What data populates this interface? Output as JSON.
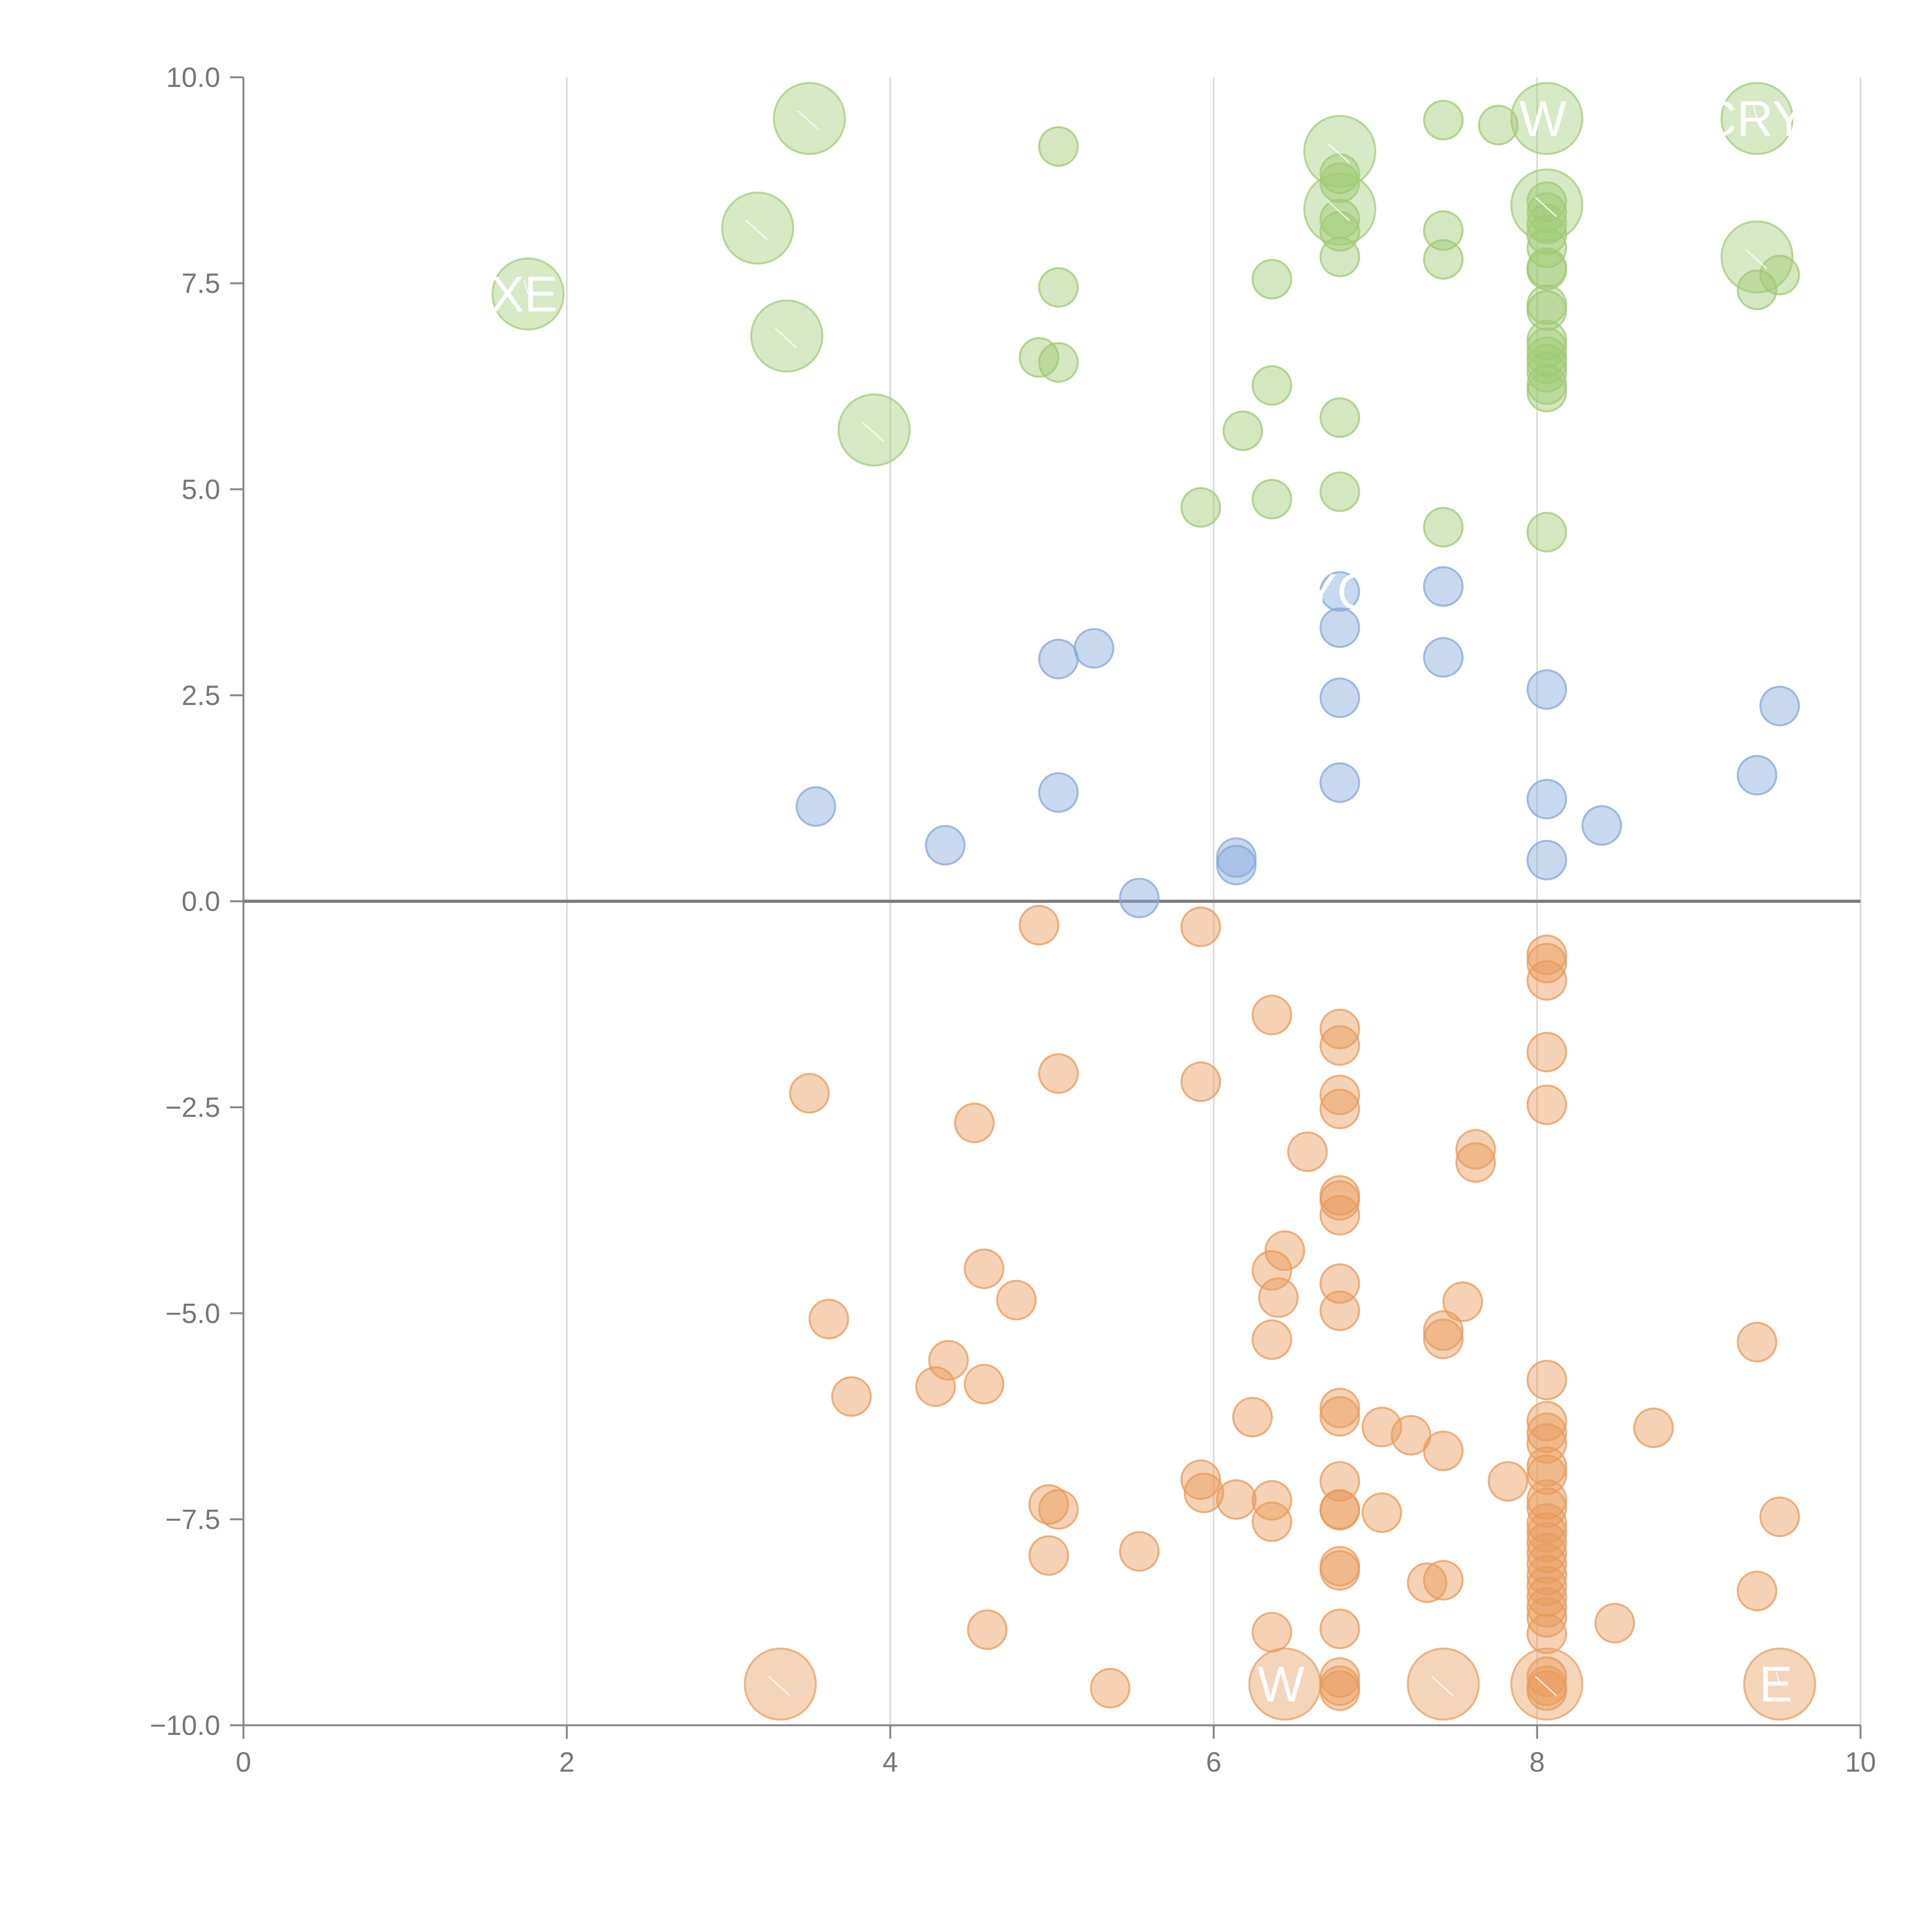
{
  "colors": {
    "positive_high": "#9fca74",
    "positive_low": "#86a8d9",
    "negative": "#e89b5b",
    "axis": "#888888",
    "grid": "#d9d9d9",
    "tick_text": "#777777",
    "label_text": "#ffffff"
  },
  "chart_data": {
    "type": "scatter",
    "title": "",
    "xlabel": "",
    "ylabel": "",
    "xlim": [
      0,
      10
    ],
    "ylim": [
      -10,
      10
    ],
    "x_ticks": [
      "0",
      "2",
      "4",
      "6",
      "8",
      "10"
    ],
    "y_ticks": [
      "−10.0",
      "−7.5",
      "−5.0",
      "−2.5",
      "0.0",
      "2.5",
      "5.0",
      "7.5",
      "10.0"
    ],
    "x_tick_values": [
      0,
      2,
      4,
      6,
      8,
      10
    ],
    "y_tick_values": [
      -10,
      -7.5,
      -5,
      -2.5,
      0,
      2.5,
      5,
      7.5,
      10
    ],
    "grid": "vertical",
    "series": [
      {
        "name": "green",
        "color": "#9fca74",
        "points": [
          {
            "x": 5.04,
            "y": 9.16
          },
          {
            "x": 7.42,
            "y": 9.48
          },
          {
            "x": 7.76,
            "y": 9.42
          },
          {
            "x": 6.78,
            "y": 8.83
          },
          {
            "x": 6.78,
            "y": 8.72
          },
          {
            "x": 6.78,
            "y": 8.28
          },
          {
            "x": 6.78,
            "y": 8.13
          },
          {
            "x": 6.78,
            "y": 7.82
          },
          {
            "x": 7.42,
            "y": 8.14
          },
          {
            "x": 7.42,
            "y": 7.79
          },
          {
            "x": 6.36,
            "y": 7.55
          },
          {
            "x": 5.04,
            "y": 7.45
          },
          {
            "x": 8.06,
            "y": 8.49
          },
          {
            "x": 8.06,
            "y": 8.36
          },
          {
            "x": 8.06,
            "y": 8.22
          },
          {
            "x": 8.06,
            "y": 8.09
          },
          {
            "x": 8.06,
            "y": 7.93
          },
          {
            "x": 8.06,
            "y": 7.69
          },
          {
            "x": 8.06,
            "y": 7.66
          },
          {
            "x": 8.06,
            "y": 7.24
          },
          {
            "x": 8.06,
            "y": 7.17
          },
          {
            "x": 8.06,
            "y": 6.81
          },
          {
            "x": 8.06,
            "y": 6.72
          },
          {
            "x": 8.06,
            "y": 6.61
          },
          {
            "x": 8.06,
            "y": 6.52
          },
          {
            "x": 8.06,
            "y": 6.42
          },
          {
            "x": 8.06,
            "y": 6.27
          },
          {
            "x": 8.06,
            "y": 6.18
          },
          {
            "x": 9.5,
            "y": 7.6
          },
          {
            "x": 9.36,
            "y": 7.42
          },
          {
            "x": 4.92,
            "y": 6.6
          },
          {
            "x": 5.04,
            "y": 6.54
          },
          {
            "x": 6.36,
            "y": 6.26
          },
          {
            "x": 6.18,
            "y": 5.71
          },
          {
            "x": 6.78,
            "y": 5.87
          },
          {
            "x": 5.92,
            "y": 4.78
          },
          {
            "x": 6.36,
            "y": 4.88
          },
          {
            "x": 6.78,
            "y": 4.97
          },
          {
            "x": 7.42,
            "y": 4.54
          },
          {
            "x": 8.06,
            "y": 4.48
          }
        ]
      },
      {
        "name": "blue",
        "color": "#86a8d9",
        "points": [
          {
            "x": 6.78,
            "y": 3.76
          },
          {
            "x": 7.42,
            "y": 3.82
          },
          {
            "x": 6.78,
            "y": 3.32
          },
          {
            "x": 5.26,
            "y": 3.07
          },
          {
            "x": 5.04,
            "y": 2.94
          },
          {
            "x": 7.42,
            "y": 2.96
          },
          {
            "x": 8.06,
            "y": 2.57
          },
          {
            "x": 6.78,
            "y": 2.47
          },
          {
            "x": 9.5,
            "y": 2.37
          },
          {
            "x": 6.78,
            "y": 1.44
          },
          {
            "x": 9.36,
            "y": 1.53
          },
          {
            "x": 8.06,
            "y": 1.24
          },
          {
            "x": 5.04,
            "y": 1.32
          },
          {
            "x": 3.54,
            "y": 1.15
          },
          {
            "x": 8.4,
            "y": 0.92
          },
          {
            "x": 4.34,
            "y": 0.68
          },
          {
            "x": 6.14,
            "y": 0.53
          },
          {
            "x": 6.14,
            "y": 0.44
          },
          {
            "x": 8.06,
            "y": 0.5
          },
          {
            "x": 5.54,
            "y": 0.04
          }
        ]
      },
      {
        "name": "orange",
        "color": "#e89b5b",
        "points": [
          {
            "x": 4.92,
            "y": -0.29
          },
          {
            "x": 5.92,
            "y": -0.31
          },
          {
            "x": 8.06,
            "y": -0.65
          },
          {
            "x": 8.06,
            "y": -0.75
          },
          {
            "x": 8.06,
            "y": -0.96
          },
          {
            "x": 6.36,
            "y": -1.38
          },
          {
            "x": 6.78,
            "y": -1.55
          },
          {
            "x": 6.78,
            "y": -1.75
          },
          {
            "x": 8.06,
            "y": -1.83
          },
          {
            "x": 3.5,
            "y": -2.33
          },
          {
            "x": 5.04,
            "y": -2.09
          },
          {
            "x": 5.92,
            "y": -2.19
          },
          {
            "x": 6.78,
            "y": -2.35
          },
          {
            "x": 6.78,
            "y": -2.52
          },
          {
            "x": 8.06,
            "y": -2.47
          },
          {
            "x": 4.52,
            "y": -2.69
          },
          {
            "x": 6.58,
            "y": -3.04
          },
          {
            "x": 7.62,
            "y": -3.01
          },
          {
            "x": 7.62,
            "y": -3.17
          },
          {
            "x": 6.78,
            "y": -3.57
          },
          {
            "x": 6.78,
            "y": -3.63
          },
          {
            "x": 6.78,
            "y": -3.81
          },
          {
            "x": 6.44,
            "y": -4.24
          },
          {
            "x": 6.36,
            "y": -4.48
          },
          {
            "x": 4.58,
            "y": -4.46
          },
          {
            "x": 6.78,
            "y": -4.64
          },
          {
            "x": 6.4,
            "y": -4.81
          },
          {
            "x": 4.78,
            "y": -4.84
          },
          {
            "x": 7.54,
            "y": -4.86
          },
          {
            "x": 6.78,
            "y": -4.97
          },
          {
            "x": 3.62,
            "y": -5.07
          },
          {
            "x": 7.42,
            "y": -5.21
          },
          {
            "x": 7.42,
            "y": -5.31
          },
          {
            "x": 6.36,
            "y": -5.32
          },
          {
            "x": 9.36,
            "y": -5.35
          },
          {
            "x": 4.36,
            "y": -5.57
          },
          {
            "x": 4.28,
            "y": -5.89
          },
          {
            "x": 4.58,
            "y": -5.86
          },
          {
            "x": 3.76,
            "y": -6.01
          },
          {
            "x": 8.06,
            "y": -5.81
          },
          {
            "x": 6.78,
            "y": -6.15
          },
          {
            "x": 6.78,
            "y": -6.25
          },
          {
            "x": 6.24,
            "y": -6.26
          },
          {
            "x": 8.06,
            "y": -6.31
          },
          {
            "x": 8.06,
            "y": -6.45
          },
          {
            "x": 7.04,
            "y": -6.38
          },
          {
            "x": 8.72,
            "y": -6.39
          },
          {
            "x": 7.22,
            "y": -6.48
          },
          {
            "x": 8.06,
            "y": -6.58
          },
          {
            "x": 7.42,
            "y": -6.67
          },
          {
            "x": 8.06,
            "y": -6.86
          },
          {
            "x": 8.06,
            "y": -6.96
          },
          {
            "x": 5.92,
            "y": -7.02
          },
          {
            "x": 6.78,
            "y": -7.04
          },
          {
            "x": 7.82,
            "y": -7.04
          },
          {
            "x": 5.94,
            "y": -7.18
          },
          {
            "x": 6.14,
            "y": -7.26
          },
          {
            "x": 6.36,
            "y": -7.27
          },
          {
            "x": 4.98,
            "y": -7.32
          },
          {
            "x": 5.04,
            "y": -7.38
          },
          {
            "x": 6.78,
            "y": -7.38
          },
          {
            "x": 6.78,
            "y": -7.39
          },
          {
            "x": 7.04,
            "y": -7.42
          },
          {
            "x": 8.06,
            "y": -7.26
          },
          {
            "x": 8.06,
            "y": -7.36
          },
          {
            "x": 9.5,
            "y": -7.47
          },
          {
            "x": 6.36,
            "y": -7.53
          },
          {
            "x": 8.06,
            "y": -7.55
          },
          {
            "x": 8.06,
            "y": -7.66
          },
          {
            "x": 8.06,
            "y": -7.78
          },
          {
            "x": 5.54,
            "y": -7.89
          },
          {
            "x": 4.98,
            "y": -7.94
          },
          {
            "x": 8.06,
            "y": -7.91
          },
          {
            "x": 8.06,
            "y": -8.04
          },
          {
            "x": 6.78,
            "y": -8.07
          },
          {
            "x": 6.78,
            "y": -8.12
          },
          {
            "x": 8.06,
            "y": -8.18
          },
          {
            "x": 7.32,
            "y": -8.27
          },
          {
            "x": 7.42,
            "y": -8.24
          },
          {
            "x": 8.06,
            "y": -8.31
          },
          {
            "x": 9.36,
            "y": -8.37
          },
          {
            "x": 8.06,
            "y": -8.44
          },
          {
            "x": 8.06,
            "y": -8.57
          },
          {
            "x": 8.06,
            "y": -8.69
          },
          {
            "x": 8.48,
            "y": -8.76
          },
          {
            "x": 4.6,
            "y": -8.84
          },
          {
            "x": 6.36,
            "y": -8.87
          },
          {
            "x": 6.78,
            "y": -8.83
          },
          {
            "x": 8.06,
            "y": -8.89
          },
          {
            "x": 8.06,
            "y": -9.41
          },
          {
            "x": 8.06,
            "y": -9.52
          },
          {
            "x": 8.06,
            "y": -9.58
          },
          {
            "x": 6.78,
            "y": -9.42
          },
          {
            "x": 6.78,
            "y": -9.52
          },
          {
            "x": 6.78,
            "y": -9.58
          },
          {
            "x": 5.36,
            "y": -9.55
          }
        ]
      }
    ],
    "large_bubbles": [
      {
        "name": "green-big-1",
        "series": "green",
        "x": 3.5,
        "y": 9.5,
        "label": ""
      },
      {
        "name": "green-big-2",
        "series": "green",
        "x": 8.06,
        "y": 9.5,
        "label": "W"
      },
      {
        "name": "green-big-3",
        "series": "green",
        "x": 9.36,
        "y": 9.5,
        "label": "CRY"
      },
      {
        "name": "green-big-4",
        "series": "green",
        "x": 6.78,
        "y": 9.1,
        "label": ""
      },
      {
        "name": "green-big-5",
        "series": "green",
        "x": 6.78,
        "y": 8.4,
        "label": ""
      },
      {
        "name": "green-big-6",
        "series": "green",
        "x": 8.06,
        "y": 8.45,
        "label": ""
      },
      {
        "name": "green-big-7",
        "series": "green",
        "x": 3.18,
        "y": 8.17,
        "label": ""
      },
      {
        "name": "green-big-8",
        "series": "green",
        "x": 9.36,
        "y": 7.82,
        "label": ""
      },
      {
        "name": "green-big-9",
        "series": "green",
        "x": 1.76,
        "y": 7.37,
        "label": "XE"
      },
      {
        "name": "green-big-10",
        "series": "green",
        "x": 3.36,
        "y": 6.86,
        "label": ""
      },
      {
        "name": "green-big-11",
        "series": "green",
        "x": 3.9,
        "y": 5.72,
        "label": ""
      },
      {
        "name": "orange-big-1",
        "series": "orange",
        "x": 3.32,
        "y": -9.5,
        "label": ""
      },
      {
        "name": "orange-big-2",
        "series": "orange",
        "x": 6.44,
        "y": -9.5,
        "label": "W"
      },
      {
        "name": "orange-big-3",
        "series": "orange",
        "x": 7.42,
        "y": -9.5,
        "label": ""
      },
      {
        "name": "orange-big-4",
        "series": "orange",
        "x": 8.06,
        "y": -9.5,
        "label": ""
      },
      {
        "name": "orange-big-5",
        "series": "orange",
        "x": 9.5,
        "y": -9.5,
        "label": "E"
      }
    ],
    "labels": [
      {
        "name": "blue-label-yo",
        "series": "blue",
        "x": 6.78,
        "y": 3.76,
        "label": "YO"
      }
    ]
  }
}
